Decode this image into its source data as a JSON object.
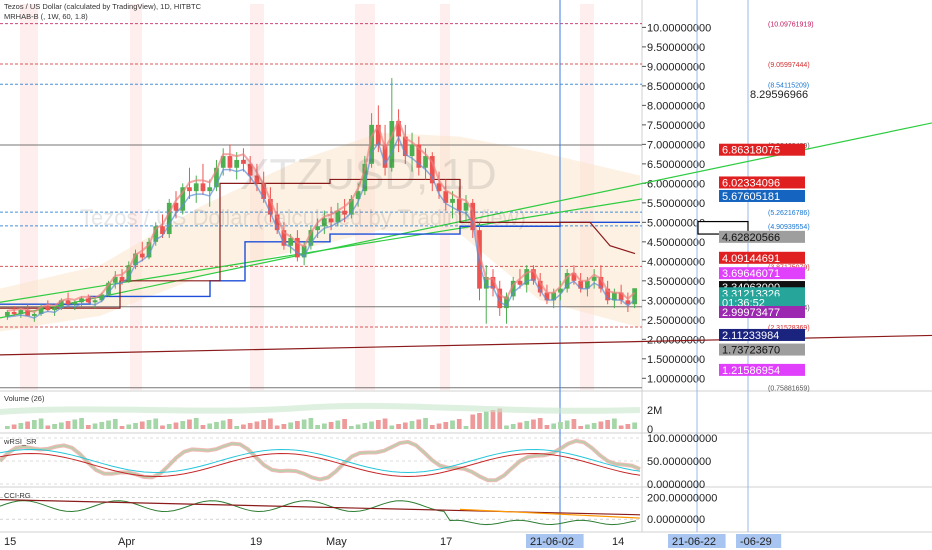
{
  "header": {
    "title": "Tezos / US Dollar (calculated by TradingView), 1D, HITBTC",
    "indicator": "MRHAB-B (, 1W, 60, 1.8)"
  },
  "watermark": {
    "symbol": "XTZUSD, 1D",
    "subtitle": "Tezos / US Dollar (calculated by TradingView)"
  },
  "panes": {
    "volume_label": "Volume (26)",
    "wrsi_label": "wRSI_SR",
    "cci_label": "CCI-RG"
  },
  "colors": {
    "up": "#4caf50",
    "down": "#ef5350",
    "accent_blue": "#1e4fd8",
    "pink": "#e040fb",
    "red_tag": "#e02020"
  },
  "chart_data": {
    "type": "candlestick",
    "price_axis": {
      "ticks": [
        "10.00000000",
        "9.50000000",
        "9.00000000",
        "8.50000000",
        "8.00000000",
        "7.50000000",
        "7.00000000",
        "6.50000000",
        "6.00000000",
        "5.50000000",
        "5.00000000",
        "4.50000000",
        "4.00000000",
        "3.50000000",
        "3.00000000",
        "2.50000000",
        "2.00000000",
        "1.50000000",
        "1.00000000"
      ],
      "range": [
        0.7,
        10.6
      ]
    },
    "price_tags": [
      {
        "label": "8.29596966",
        "value": 8.296,
        "style": "plain"
      },
      {
        "label": "6.86318075",
        "value": 6.863,
        "style": "red"
      },
      {
        "label": "6.02334096",
        "value": 6.023,
        "style": "red"
      },
      {
        "label": "5.67605181",
        "value": 5.676,
        "style": "blue"
      },
      {
        "label": "4.62820566",
        "value": 4.628,
        "style": "gray"
      },
      {
        "label": "4.09144691",
        "value": 4.091,
        "style": "red"
      },
      {
        "label": "3.69646071",
        "value": 3.696,
        "style": "pink"
      },
      {
        "label": "3.34063000",
        "value": 3.341,
        "style": "black"
      },
      {
        "label": "3.31213326",
        "value": 3.181,
        "style": "teal"
      },
      {
        "label": "01:36:52",
        "value": 2.95,
        "style": "teal"
      },
      {
        "label": "2.99973477",
        "value": 2.7,
        "style": "purple"
      },
      {
        "label": "2.11233984",
        "value": 2.112,
        "style": "navy"
      },
      {
        "label": "1.73723670",
        "value": 1.737,
        "style": "gray"
      },
      {
        "label": "1.21586954",
        "value": 1.216,
        "style": "pink"
      }
    ],
    "levels": [
      {
        "label": "(10.09761919)",
        "value": 10.098,
        "color": "#c2185b"
      },
      {
        "label": "(9.05997444)",
        "value": 9.06,
        "color": "#d32f2f"
      },
      {
        "label": "(8.54115209)",
        "value": 8.541,
        "color": "#1976d2"
      },
      {
        "label": "(6.98468499)",
        "value": 6.985,
        "color": "#555555"
      },
      {
        "label": "(5.26216786)",
        "value": 5.262,
        "color": "#1976d2"
      },
      {
        "label": "(4.90939554)",
        "value": 4.909,
        "color": "#1976d2"
      },
      {
        "label": "(3.87175079)",
        "value": 3.872,
        "color": "#d32f2f"
      },
      {
        "label": "(2.83410604)",
        "value": 2.834,
        "color": "#555555"
      },
      {
        "label": "(2.31528369)",
        "value": 2.315,
        "color": "#d32f2f"
      },
      {
        "label": "(0.75881659)",
        "value": 0.759,
        "color": "#555555"
      }
    ],
    "x_axis": {
      "labels": [
        "15",
        "Apr",
        "19",
        "May",
        "17",
        "21-06-02",
        "14",
        "21-06-22",
        "-06-29"
      ]
    },
    "volume_axis": [
      "2M",
      "0"
    ],
    "wrsi_axis": [
      "100.00000000",
      "50.00000000",
      "0.00000000"
    ],
    "cci_axis": [
      "200.00000000",
      "0.00000000"
    ],
    "candles": [
      [
        2.6,
        2.75,
        2.5,
        2.7
      ],
      [
        2.7,
        2.85,
        2.6,
        2.65
      ],
      [
        2.65,
        2.8,
        2.55,
        2.75
      ],
      [
        2.75,
        2.9,
        2.6,
        2.6
      ],
      [
        2.6,
        2.7,
        2.45,
        2.65
      ],
      [
        2.65,
        2.9,
        2.6,
        2.85
      ],
      [
        2.85,
        3.0,
        2.7,
        2.75
      ],
      [
        2.75,
        2.85,
        2.6,
        2.8
      ],
      [
        2.8,
        3.05,
        2.75,
        3.0
      ],
      [
        3.0,
        3.2,
        2.85,
        2.9
      ],
      [
        2.9,
        3.0,
        2.75,
        2.95
      ],
      [
        2.95,
        3.1,
        2.85,
        3.05
      ],
      [
        3.05,
        3.15,
        2.9,
        2.95
      ],
      [
        2.95,
        3.05,
        2.8,
        3.0
      ],
      [
        3.0,
        3.2,
        2.95,
        3.15
      ],
      [
        3.15,
        3.5,
        3.1,
        3.45
      ],
      [
        3.45,
        3.75,
        3.3,
        3.6
      ],
      [
        3.6,
        3.8,
        3.4,
        3.5
      ],
      [
        3.5,
        4.0,
        3.45,
        3.9
      ],
      [
        3.9,
        4.3,
        3.8,
        4.2
      ],
      [
        4.2,
        4.5,
        4.0,
        4.1
      ],
      [
        4.1,
        4.6,
        4.05,
        4.5
      ],
      [
        4.5,
        5.0,
        4.4,
        4.9
      ],
      [
        4.9,
        5.2,
        4.6,
        4.7
      ],
      [
        4.7,
        5.6,
        4.6,
        5.5
      ],
      [
        5.5,
        5.8,
        5.1,
        5.3
      ],
      [
        5.3,
        6.0,
        5.2,
        5.9
      ],
      [
        5.9,
        6.4,
        5.6,
        5.8
      ],
      [
        5.8,
        6.2,
        5.5,
        6.0
      ],
      [
        6.0,
        6.5,
        5.7,
        5.8
      ],
      [
        5.8,
        6.1,
        5.4,
        5.9
      ],
      [
        5.9,
        6.6,
        5.8,
        6.4
      ],
      [
        6.4,
        6.9,
        6.2,
        6.7
      ],
      [
        6.7,
        7.0,
        6.3,
        6.4
      ],
      [
        6.4,
        6.8,
        6.1,
        6.6
      ],
      [
        6.6,
        6.9,
        6.3,
        6.5
      ],
      [
        6.5,
        6.7,
        6.0,
        6.2
      ],
      [
        6.2,
        6.5,
        5.8,
        6.0
      ],
      [
        6.0,
        6.3,
        5.5,
        5.6
      ],
      [
        5.6,
        5.9,
        5.0,
        5.2
      ],
      [
        5.2,
        5.5,
        4.7,
        4.8
      ],
      [
        4.8,
        5.0,
        4.3,
        4.4
      ],
      [
        4.4,
        4.7,
        4.2,
        4.6
      ],
      [
        4.6,
        4.8,
        4.0,
        4.1
      ],
      [
        4.1,
        4.5,
        3.9,
        4.4
      ],
      [
        4.4,
        4.9,
        4.3,
        4.8
      ],
      [
        4.8,
        5.1,
        4.6,
        4.9
      ],
      [
        4.9,
        5.3,
        4.7,
        5.1
      ],
      [
        5.1,
        5.4,
        4.8,
        5.0
      ],
      [
        5.0,
        5.5,
        4.9,
        5.3
      ],
      [
        5.3,
        5.6,
        5.0,
        5.2
      ],
      [
        5.2,
        5.7,
        5.1,
        5.6
      ],
      [
        5.6,
        6.0,
        5.4,
        5.8
      ],
      [
        5.8,
        6.7,
        5.7,
        6.5
      ],
      [
        6.5,
        7.8,
        6.4,
        7.5
      ],
      [
        7.5,
        8.0,
        6.8,
        7.0
      ],
      [
        7.0,
        7.5,
        6.2,
        6.4
      ],
      [
        6.4,
        8.7,
        6.3,
        7.6
      ],
      [
        7.6,
        7.9,
        6.8,
        7.2
      ],
      [
        7.2,
        7.5,
        6.5,
        6.7
      ],
      [
        6.7,
        7.3,
        6.3,
        7.0
      ],
      [
        7.0,
        7.2,
        6.2,
        6.4
      ],
      [
        6.4,
        6.9,
        6.1,
        6.7
      ],
      [
        6.7,
        6.8,
        5.8,
        6.0
      ],
      [
        6.0,
        6.3,
        5.6,
        5.8
      ],
      [
        5.8,
        6.1,
        5.3,
        5.5
      ],
      [
        5.5,
        5.8,
        5.1,
        5.6
      ],
      [
        5.6,
        5.9,
        5.2,
        5.3
      ],
      [
        5.3,
        5.7,
        5.0,
        5.5
      ],
      [
        5.5,
        5.6,
        4.6,
        4.8
      ],
      [
        4.8,
        5.0,
        3.0,
        3.3
      ],
      [
        3.3,
        3.9,
        2.4,
        3.6
      ],
      [
        3.6,
        3.8,
        3.1,
        3.3
      ],
      [
        3.3,
        3.5,
        2.6,
        2.8
      ],
      [
        2.8,
        3.2,
        2.4,
        3.1
      ],
      [
        3.1,
        3.6,
        3.0,
        3.5
      ],
      [
        3.5,
        3.8,
        3.3,
        3.4
      ],
      [
        3.4,
        3.9,
        3.2,
        3.8
      ],
      [
        3.8,
        3.9,
        3.4,
        3.5
      ],
      [
        3.5,
        3.7,
        3.1,
        3.2
      ],
      [
        3.2,
        3.4,
        2.9,
        3.0
      ],
      [
        3.0,
        3.3,
        2.8,
        3.2
      ],
      [
        3.2,
        3.5,
        3.0,
        3.3
      ],
      [
        3.3,
        3.8,
        3.2,
        3.7
      ],
      [
        3.7,
        3.9,
        3.4,
        3.5
      ],
      [
        3.5,
        3.7,
        3.2,
        3.3
      ],
      [
        3.3,
        3.6,
        3.1,
        3.5
      ],
      [
        3.5,
        3.8,
        3.3,
        3.6
      ],
      [
        3.6,
        3.9,
        3.2,
        3.3
      ],
      [
        3.3,
        3.5,
        2.9,
        3.0
      ],
      [
        3.0,
        3.3,
        2.8,
        3.2
      ],
      [
        3.2,
        3.4,
        2.9,
        3.0
      ],
      [
        3.0,
        3.2,
        2.7,
        2.9
      ],
      [
        2.9,
        3.3,
        2.8,
        3.31
      ]
    ]
  }
}
